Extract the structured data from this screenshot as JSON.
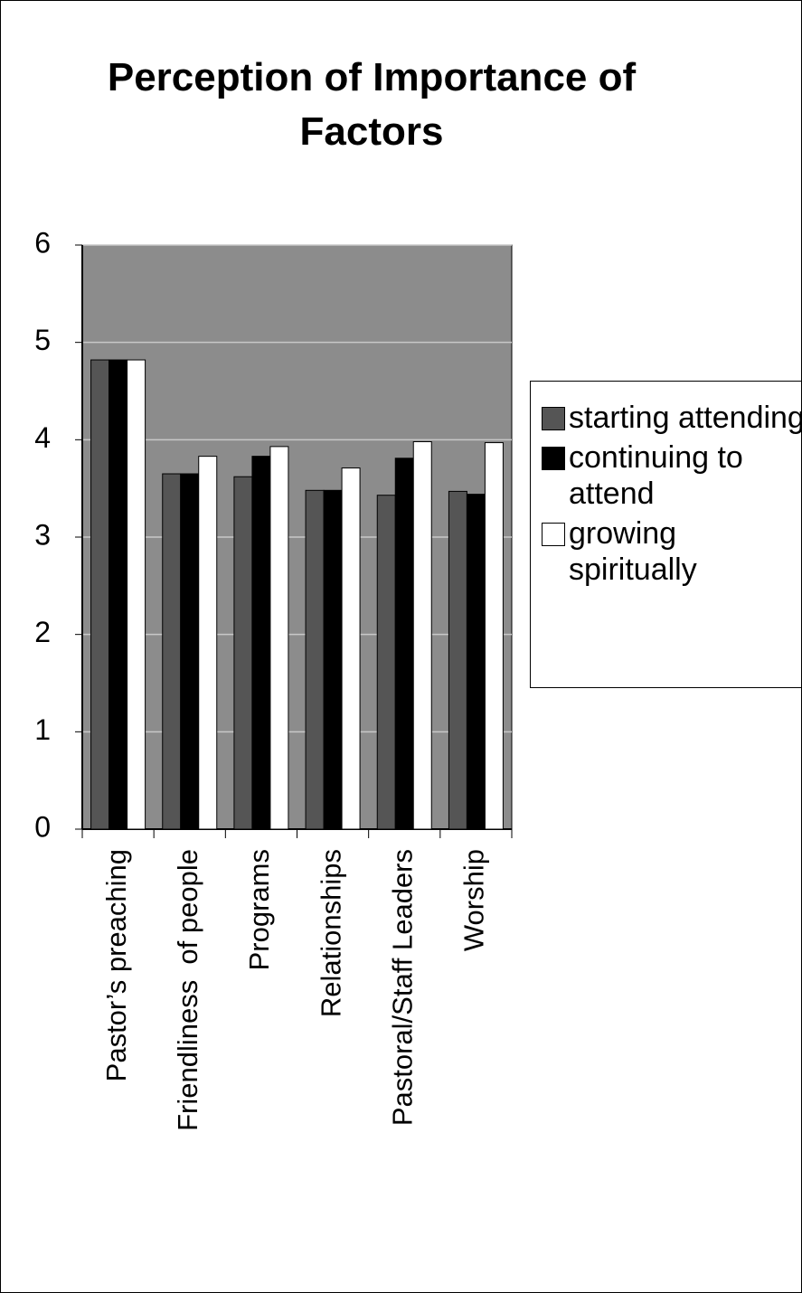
{
  "chart_data": {
    "type": "bar",
    "title": "Perception of Importance of Factors",
    "categories": [
      "Pastor’s preaching",
      "Friendliness  of people",
      "Programs",
      "Relationships",
      "Pastoral/Staff Leaders",
      "Worship"
    ],
    "series": [
      {
        "name": "starting attending",
        "color": "#555555",
        "values": [
          4.82,
          3.65,
          3.62,
          3.48,
          3.43,
          3.47
        ]
      },
      {
        "name": "continuing to attend",
        "color": "#000000",
        "values": [
          4.82,
          3.65,
          3.83,
          3.48,
          3.81,
          3.44
        ]
      },
      {
        "name": "growing spiritually",
        "color": "#ffffff",
        "values": [
          4.82,
          3.83,
          3.93,
          3.71,
          3.98,
          3.97
        ]
      }
    ],
    "ylim": [
      0,
      6
    ],
    "yticks": [
      0,
      1,
      2,
      3,
      4,
      5,
      6
    ],
    "grid": true
  }
}
